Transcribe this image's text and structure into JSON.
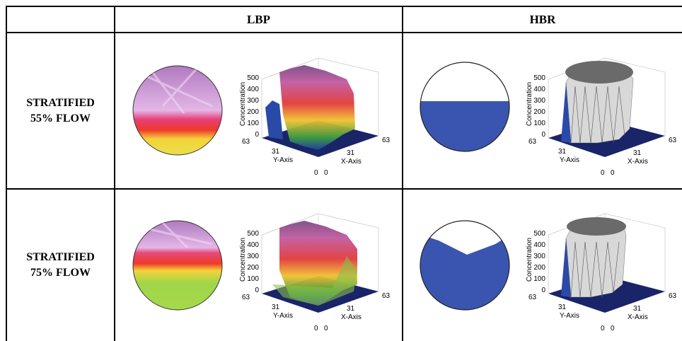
{
  "table": {
    "columns": [
      "",
      "LBP",
      "HBR"
    ],
    "rows": [
      {
        "line1": "STRATIFIED",
        "line2": "55% FLOW"
      },
      {
        "line1": "STRATIFIED",
        "line2": "75% FLOW"
      }
    ]
  },
  "plot_labels": {
    "z_axis": "Concentration",
    "y_axis": "Y-Axis",
    "x_axis": "X-Axis",
    "z_ticks": [
      "500",
      "400",
      "300",
      "200",
      "100",
      "0"
    ],
    "xy_ticks": [
      "63",
      "31",
      "0"
    ]
  },
  "colors": {
    "hbr_fill": "#3a55b0",
    "floor": "#1a2468",
    "lbp_top": "#c79bd0",
    "lbp_mid": "#e64a4a",
    "lbp_low_55": "#f2d23a",
    "lbp_low_75": "#9ad44a"
  }
}
